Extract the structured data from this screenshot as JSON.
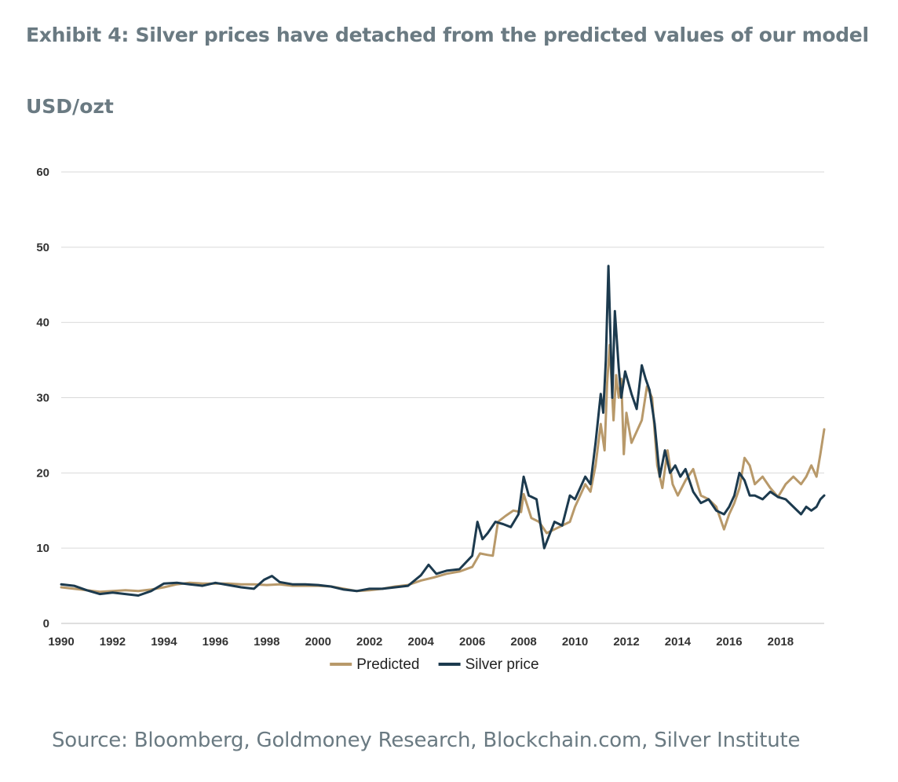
{
  "header": {
    "title": "Exhibit 4: Silver prices have detached from the predicted values of our model",
    "unit": "USD/ozt"
  },
  "footer": {
    "source": "Source: Bloomberg, Goldmoney Research, Blockchain.com, Silver Institute"
  },
  "colors": {
    "predicted": "#b8996a",
    "silver": "#1c3a4e",
    "grid": "#d9d9d9",
    "text": "#6a7a82"
  },
  "chart_data": {
    "type": "line",
    "title": "",
    "xlabel": "",
    "ylabel": "USD/ozt",
    "xlim": [
      1990,
      2019.7
    ],
    "ylim": [
      0,
      60
    ],
    "y_ticks": [
      0,
      10,
      20,
      30,
      40,
      50,
      60
    ],
    "x_ticks": [
      1990,
      1992,
      1994,
      1996,
      1998,
      2000,
      2002,
      2004,
      2006,
      2008,
      2010,
      2012,
      2014,
      2016,
      2018
    ],
    "grid": true,
    "legend_position": "bottom-center",
    "series": [
      {
        "name": "Predicted",
        "color": "#b8996a",
        "x": [
          1990,
          1990.5,
          1991,
          1991.5,
          1992,
          1992.5,
          1993,
          1993.5,
          1994,
          1994.5,
          1995,
          1995.5,
          1996,
          1996.5,
          1997,
          1997.5,
          1998,
          1998.5,
          1999,
          1999.5,
          2000,
          2000.5,
          2001,
          2001.5,
          2002,
          2002.5,
          2003,
          2003.5,
          2004,
          2004.5,
          2005,
          2005.5,
          2006,
          2006.3,
          2006.6,
          2006.8,
          2007,
          2007.3,
          2007.6,
          2007.9,
          2008,
          2008.3,
          2008.6,
          2008.9,
          2009.2,
          2009.5,
          2009.8,
          2010,
          2010.2,
          2010.4,
          2010.6,
          2010.8,
          2011,
          2011.15,
          2011.25,
          2011.35,
          2011.5,
          2011.6,
          2011.7,
          2011.8,
          2011.9,
          2012,
          2012.2,
          2012.4,
          2012.6,
          2012.8,
          2013,
          2013.2,
          2013.4,
          2013.6,
          2013.8,
          2014,
          2014.3,
          2014.6,
          2014.9,
          2015.2,
          2015.5,
          2015.8,
          2016,
          2016.2,
          2016.4,
          2016.6,
          2016.8,
          2017,
          2017.3,
          2017.6,
          2017.9,
          2018.2,
          2018.5,
          2018.8,
          2019,
          2019.2,
          2019.4,
          2019.55,
          2019.7
        ],
        "y": [
          4.8,
          4.6,
          4.4,
          4.2,
          4.3,
          4.4,
          4.3,
          4.5,
          4.8,
          5.2,
          5.4,
          5.3,
          5.3,
          5.3,
          5.2,
          5.2,
          5.1,
          5.2,
          5.0,
          5.0,
          5.0,
          4.9,
          4.6,
          4.3,
          4.4,
          4.6,
          4.9,
          5.1,
          5.7,
          6.1,
          6.6,
          6.9,
          7.5,
          9.3,
          9.1,
          9.0,
          13.5,
          14.3,
          15.0,
          14.8,
          17.2,
          14.0,
          13.5,
          12.0,
          12.5,
          13.0,
          13.5,
          15.5,
          17.0,
          18.5,
          17.5,
          21.0,
          26.5,
          23.0,
          32.0,
          37.0,
          27.0,
          33.0,
          30.0,
          32.5,
          22.5,
          28.0,
          24.0,
          25.5,
          27.0,
          31.5,
          30.0,
          21.0,
          18.0,
          23.0,
          18.5,
          17.0,
          19.0,
          20.5,
          17.0,
          16.5,
          15.5,
          12.5,
          14.5,
          16.0,
          18.0,
          22.0,
          21.0,
          18.5,
          19.5,
          18.0,
          16.8,
          18.5,
          19.5,
          18.5,
          19.5,
          21.0,
          19.5,
          22.5,
          25.8
        ]
      },
      {
        "name": "Silver price",
        "color": "#1c3a4e",
        "x": [
          1990,
          1990.5,
          1991,
          1991.5,
          1992,
          1992.5,
          1993,
          1993.5,
          1994,
          1994.5,
          1995,
          1995.5,
          1996,
          1996.5,
          1997,
          1997.5,
          1997.9,
          1998.2,
          1998.5,
          1999,
          1999.5,
          2000,
          2000.5,
          2001,
          2001.5,
          2002,
          2002.5,
          2003,
          2003.5,
          2004,
          2004.3,
          2004.6,
          2005,
          2005.5,
          2006,
          2006.2,
          2006.4,
          2006.6,
          2006.9,
          2007.2,
          2007.5,
          2007.8,
          2008,
          2008.2,
          2008.5,
          2008.8,
          2009.2,
          2009.5,
          2009.8,
          2010,
          2010.2,
          2010.4,
          2010.6,
          2010.8,
          2011,
          2011.1,
          2011.2,
          2011.3,
          2011.45,
          2011.55,
          2011.7,
          2011.8,
          2011.95,
          2012.2,
          2012.4,
          2012.6,
          2012.75,
          2012.9,
          2013.1,
          2013.3,
          2013.5,
          2013.7,
          2013.9,
          2014.1,
          2014.3,
          2014.6,
          2014.9,
          2015.2,
          2015.5,
          2015.8,
          2016,
          2016.2,
          2016.4,
          2016.6,
          2016.8,
          2017,
          2017.3,
          2017.6,
          2017.9,
          2018.2,
          2018.5,
          2018.8,
          2019,
          2019.2,
          2019.4,
          2019.55,
          2019.7
        ],
        "y": [
          5.2,
          5.0,
          4.4,
          3.9,
          4.1,
          3.9,
          3.7,
          4.3,
          5.3,
          5.4,
          5.2,
          5.0,
          5.4,
          5.1,
          4.8,
          4.6,
          5.8,
          6.3,
          5.5,
          5.2,
          5.2,
          5.1,
          4.9,
          4.5,
          4.3,
          4.6,
          4.6,
          4.8,
          5.0,
          6.4,
          7.8,
          6.6,
          7.0,
          7.2,
          9.0,
          13.5,
          11.2,
          12.0,
          13.5,
          13.2,
          12.8,
          14.5,
          19.5,
          17.0,
          16.5,
          10.0,
          13.5,
          13.0,
          17.0,
          16.5,
          18.0,
          19.5,
          18.5,
          24.0,
          30.5,
          28.0,
          35.0,
          47.5,
          30.0,
          41.5,
          34.0,
          30.0,
          33.5,
          30.5,
          28.5,
          34.3,
          32.5,
          31.0,
          26.5,
          19.5,
          23.0,
          20.0,
          21.0,
          19.5,
          20.5,
          17.5,
          16.0,
          16.5,
          15.0,
          14.5,
          15.5,
          17.0,
          20.0,
          19.0,
          17.0,
          17.0,
          16.5,
          17.5,
          16.8,
          16.5,
          15.5,
          14.5,
          15.5,
          15.0,
          15.5,
          16.5,
          17.0
        ]
      }
    ]
  }
}
